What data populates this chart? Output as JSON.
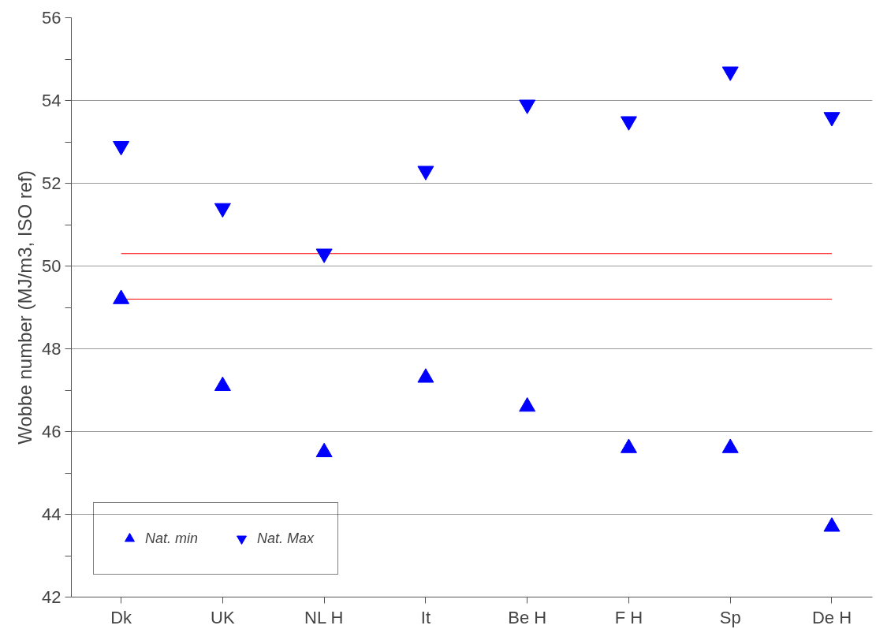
{
  "chart_data": {
    "type": "scatter",
    "ylabel": "Wobbe number (MJ/m3, ISO ref)",
    "categories": [
      "Dk",
      "UK",
      "NL H",
      "It",
      "Be H",
      "F H",
      "Sp",
      "De H"
    ],
    "series": [
      {
        "name": "Nat. min",
        "color": "#0000ff",
        "marker": "triangle",
        "values": [
          49.2,
          47.1,
          45.5,
          47.3,
          46.6,
          45.6,
          45.6,
          43.7
        ]
      },
      {
        "name": "Nat. Max",
        "color": "#0000ff",
        "values": [
          52.9,
          51.4,
          50.3,
          52.3,
          53.9,
          53.5,
          54.7,
          53.6
        ]
      }
    ],
    "ylim": [
      42,
      56
    ],
    "yticks": [
      42,
      {
        "value": 43,
        "label": null
      },
      44,
      {
        "value": 45,
        "label": null
      },
      46,
      {
        "value": 47,
        "label": null
      },
      48,
      {
        "value": 49,
        "label": null
      },
      50,
      {
        "value": 51,
        "label": null
      },
      52,
      {
        "value": 53,
        "label": null
      },
      54,
      {
        "value": 55,
        "label": null
      },
      56
    ],
    "ref_lines": [
      {
        "axis": "y",
        "value": 50.3,
        "color": "#ff0000"
      },
      {
        "axis": "y",
        "value": 49.2,
        "color": "#ff0000"
      }
    ],
    "grid": "y",
    "legend": "bottom left"
  }
}
